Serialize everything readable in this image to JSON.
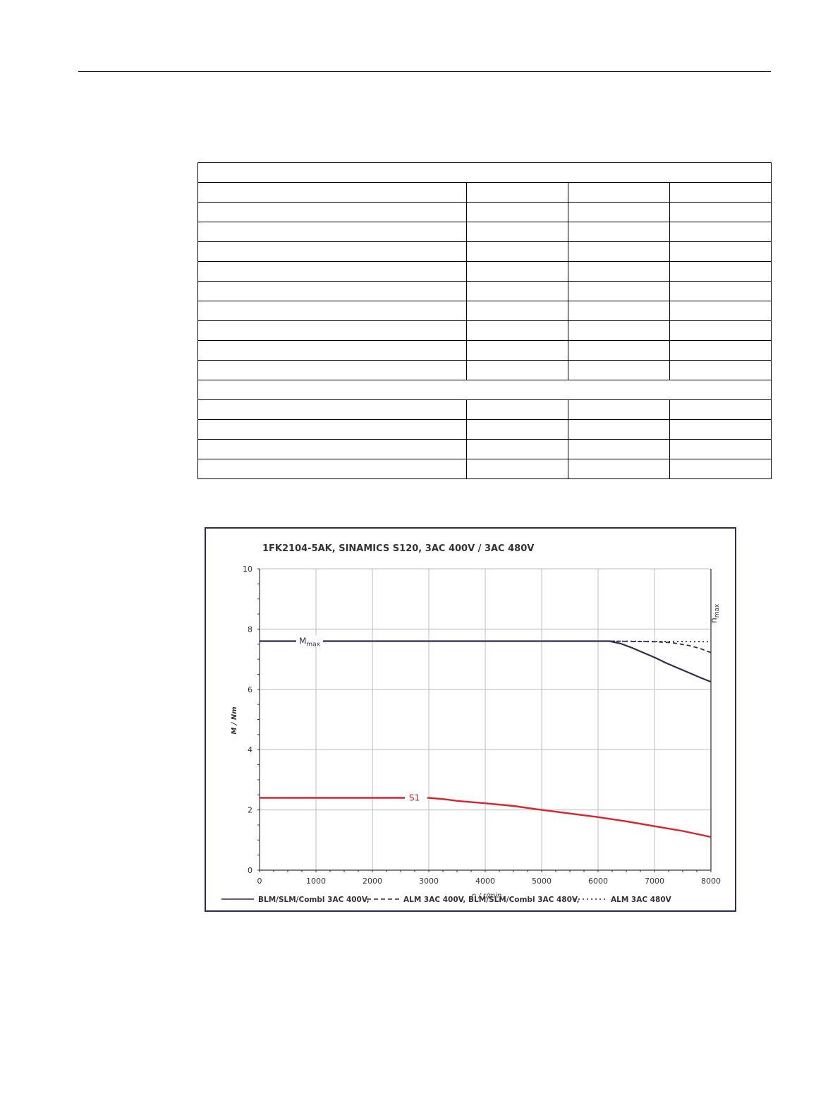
{
  "chart_data": {
    "type": "line",
    "title": "1FK2104-5AK,  SINAMICS S120,  3AC 400V / 3AC 480V",
    "xlabel": "n / r/min",
    "ylabel": "M / Nm",
    "xlim": [
      0,
      8000
    ],
    "ylim": [
      0,
      10
    ],
    "x_ticks": [
      "0",
      "1000",
      "2000",
      "3000",
      "4000",
      "5000",
      "6000",
      "7000",
      "8000"
    ],
    "y_ticks": [
      "0",
      "2",
      "4",
      "6",
      "8",
      "10"
    ],
    "grid": true,
    "colors": {
      "mmax": "#2b2f52",
      "s1": "#d9222a",
      "grid": "#bdbdbd",
      "frame": "#2b2f52"
    },
    "annotations": {
      "mmax_main": "M",
      "mmax_sub": "max",
      "s1": "S1",
      "nmax_main": "n",
      "nmax_sub": "max"
    },
    "series": [
      {
        "name": "BLM/SLM/Combl 3AC 400V,",
        "style": "solid",
        "color": "#2b2f52",
        "points": [
          [
            0,
            7.6
          ],
          [
            6200,
            7.6
          ],
          [
            6400,
            7.52
          ],
          [
            6600,
            7.38
          ],
          [
            6800,
            7.22
          ],
          [
            7000,
            7.06
          ],
          [
            7200,
            6.88
          ],
          [
            7400,
            6.72
          ],
          [
            7600,
            6.56
          ],
          [
            7800,
            6.4
          ],
          [
            8000,
            6.25
          ]
        ]
      },
      {
        "name": "ALM 3AC 400V, BLM/SLM/Combl 3AC 480V,",
        "style": "dashed",
        "color": "#2b2f52",
        "points": [
          [
            6200,
            7.6
          ],
          [
            7000,
            7.58
          ],
          [
            7300,
            7.55
          ],
          [
            7600,
            7.46
          ],
          [
            7800,
            7.36
          ],
          [
            8000,
            7.22
          ]
        ]
      },
      {
        "name": "ALM 3AC 480V",
        "style": "dotted",
        "color": "#2b2f52",
        "points": [
          [
            6200,
            7.6
          ],
          [
            8000,
            7.58
          ]
        ]
      },
      {
        "name": "S1",
        "style": "solid",
        "color": "#d9222a",
        "points": [
          [
            0,
            2.4
          ],
          [
            3000,
            2.4
          ],
          [
            3300,
            2.35
          ],
          [
            3500,
            2.3
          ],
          [
            4000,
            2.22
          ],
          [
            4500,
            2.13
          ],
          [
            5000,
            2.0
          ],
          [
            5500,
            1.88
          ],
          [
            6000,
            1.76
          ],
          [
            6500,
            1.62
          ],
          [
            7000,
            1.46
          ],
          [
            7500,
            1.3
          ],
          [
            8000,
            1.1
          ]
        ]
      }
    ],
    "legend": [
      {
        "label": "BLM/SLM/Combl 3AC 400V,",
        "style": "solid"
      },
      {
        "label": "ALM 3AC 400V, BLM/SLM/Combl 3AC 480V,",
        "style": "dashed"
      },
      {
        "label": "ALM 3AC 480V",
        "style": "dotted"
      }
    ],
    "legend_position": "bottom"
  }
}
